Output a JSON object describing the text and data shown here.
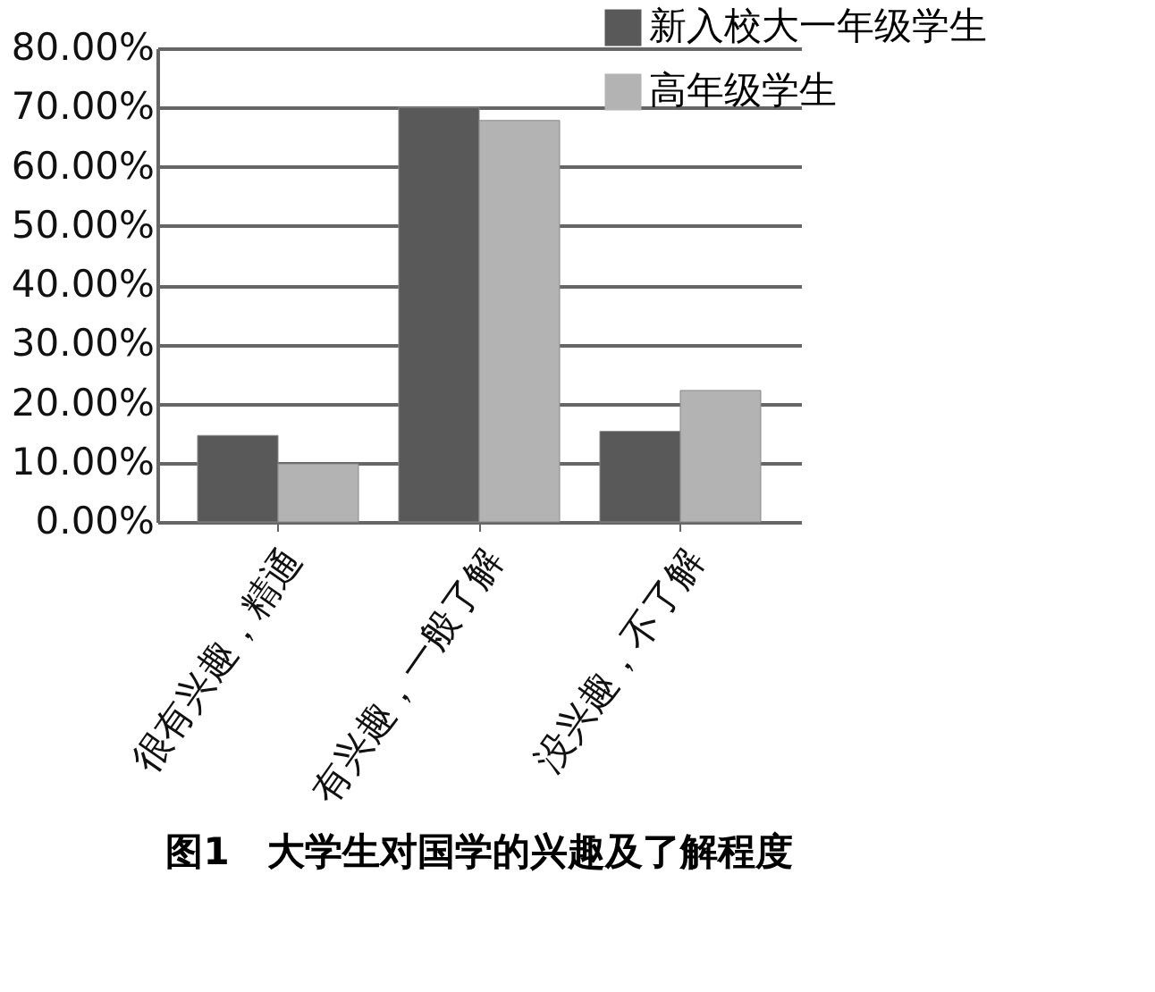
{
  "chart_data": {
    "type": "bar",
    "title": "图1　大学生对国学的兴趣及了解程度",
    "categories": [
      "很有兴趣，精通",
      "有兴趣，一般了解",
      "没兴趣，不了解"
    ],
    "series": [
      {
        "name": "新入校大一年级学生",
        "color": "#595959",
        "values": [
          14.6,
          70.0,
          15.3
        ]
      },
      {
        "name": "高年级学生",
        "color": "#b3b3b3",
        "values": [
          9.8,
          67.8,
          22.2
        ]
      }
    ],
    "ylim": [
      0,
      80
    ],
    "yticks": [
      {
        "value": 0,
        "label": "0.00%"
      },
      {
        "value": 10,
        "label": "10.00%"
      },
      {
        "value": 20,
        "label": "20.00%"
      },
      {
        "value": 30,
        "label": "30.00%"
      },
      {
        "value": 40,
        "label": "40.00%"
      },
      {
        "value": 50,
        "label": "50.00%"
      },
      {
        "value": 60,
        "label": "60.00%"
      },
      {
        "value": 70,
        "label": "70.00%"
      },
      {
        "value": 80,
        "label": "80.00%"
      }
    ],
    "grid": "y",
    "legend": "top right"
  }
}
